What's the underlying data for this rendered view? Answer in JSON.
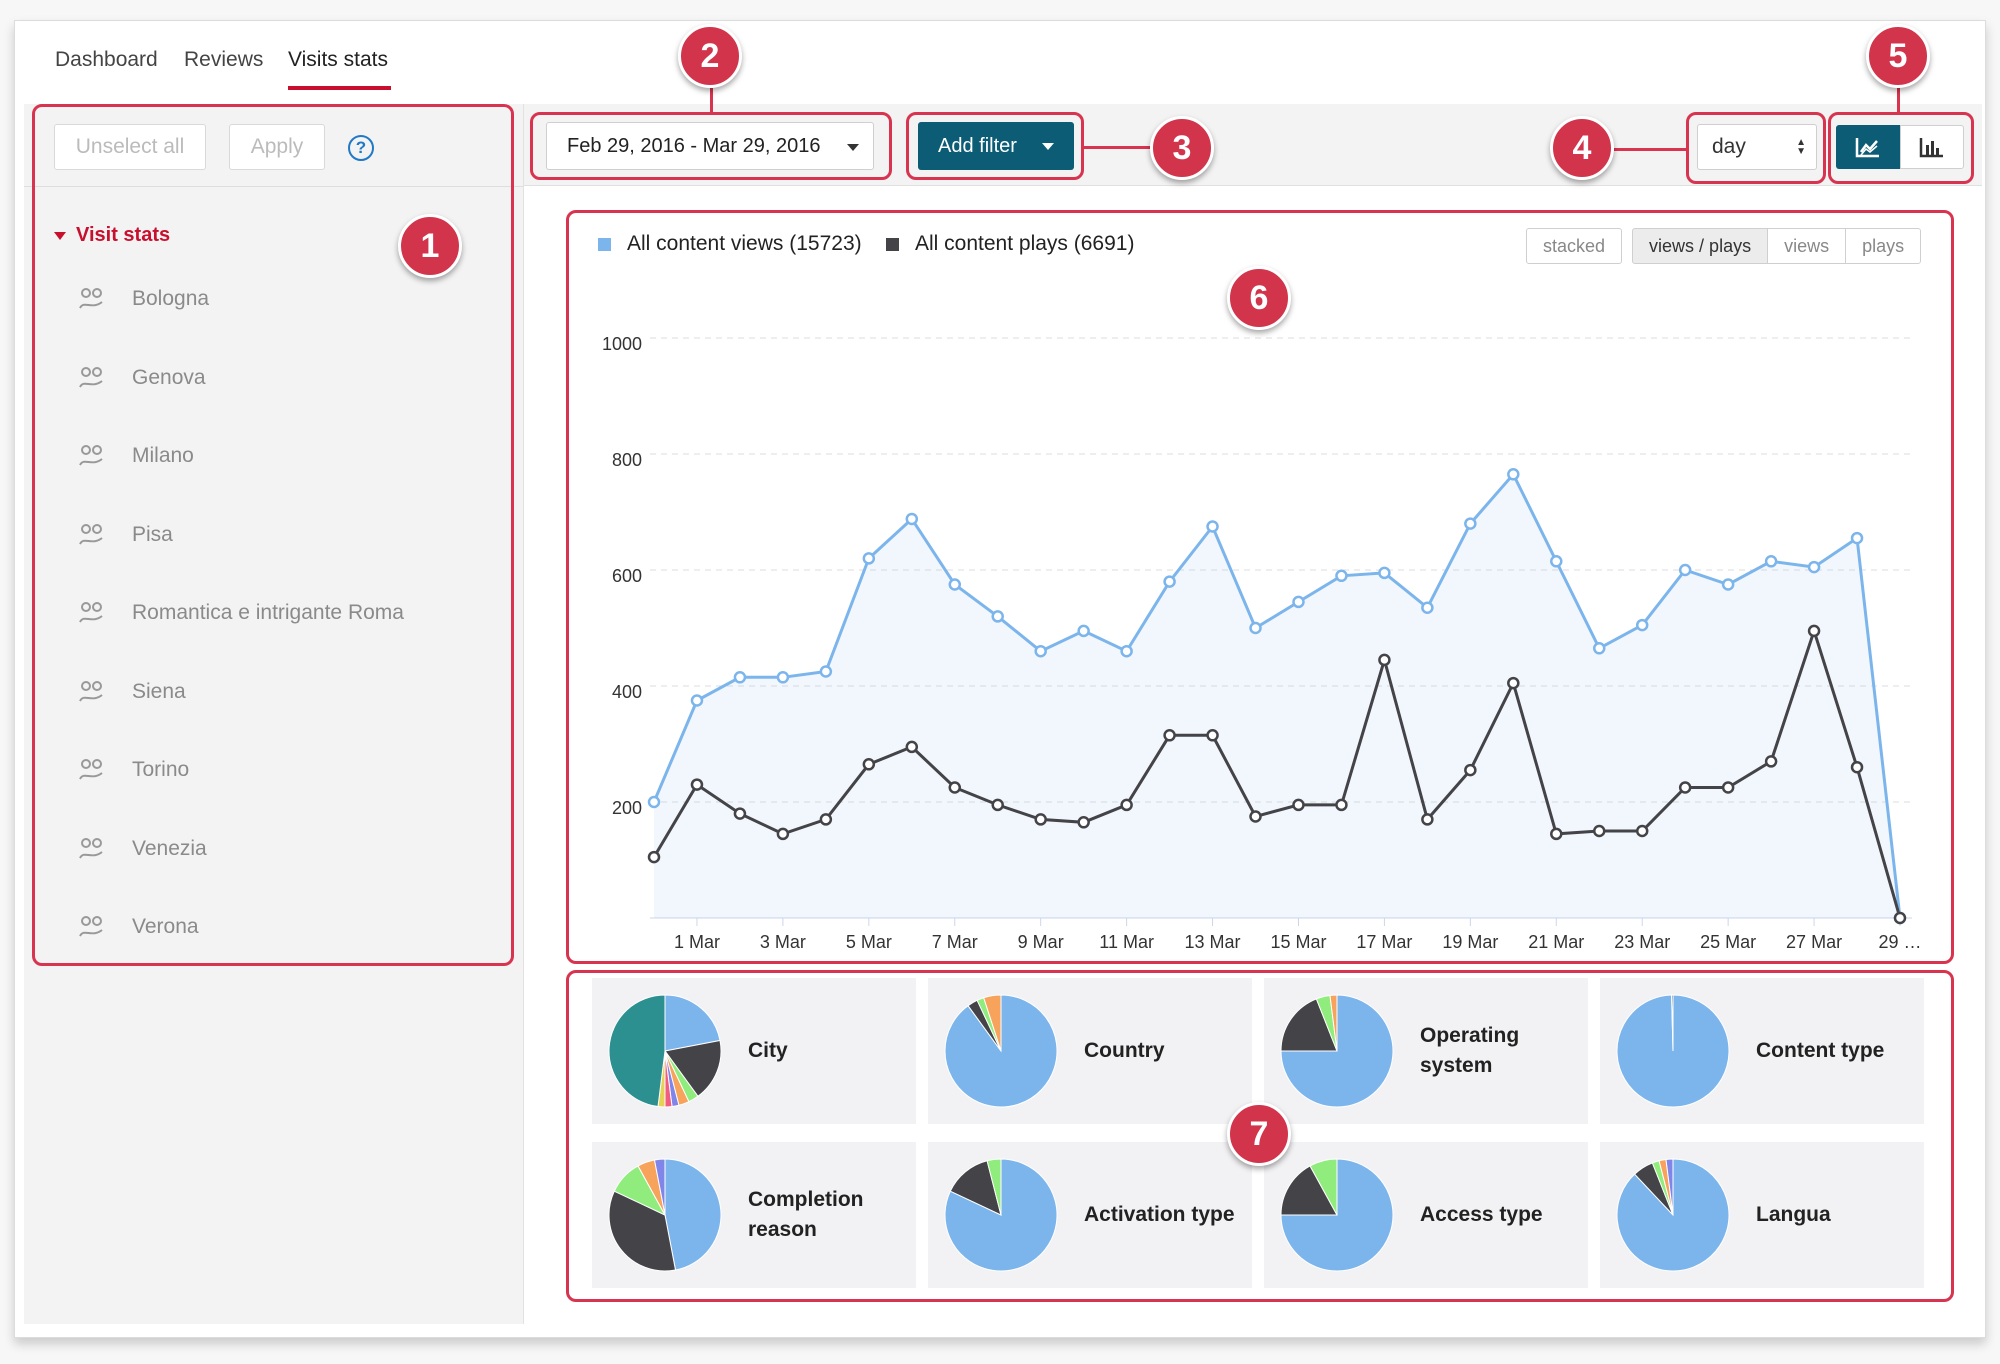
{
  "nav": {
    "tabs": [
      {
        "label": "Dashboard"
      },
      {
        "label": "Reviews"
      },
      {
        "label": "Visits stats"
      }
    ]
  },
  "sidebar": {
    "unselect_label": "Unselect all",
    "apply_label": "Apply",
    "help_icon": "?",
    "section_title": "Visit stats",
    "items": [
      {
        "label": "Bologna"
      },
      {
        "label": "Genova"
      },
      {
        "label": "Milano"
      },
      {
        "label": "Pisa"
      },
      {
        "label": "Romantica e intrigante Roma"
      },
      {
        "label": "Siena"
      },
      {
        "label": "Torino"
      },
      {
        "label": "Venezia"
      },
      {
        "label": "Verona"
      }
    ]
  },
  "toolbar": {
    "date_range": "Feb 29, 2016 - Mar 29, 2016",
    "add_filter_label": "Add filter",
    "period_select": "day",
    "view_icons": [
      "line-chart-icon",
      "bar-chart-icon"
    ]
  },
  "chart_controls": {
    "toggles": [
      "stacked",
      "views / plays",
      "views",
      "plays"
    ],
    "active": "views / plays"
  },
  "chart_data": {
    "type": "area",
    "series": [
      {
        "name": "All content views (15723)",
        "color": "#7cb5ec",
        "values": [
          200,
          375,
          415,
          415,
          425,
          620,
          688,
          575,
          520,
          460,
          495,
          460,
          580,
          675,
          500,
          545,
          590,
          595,
          535,
          680,
          765,
          615,
          465,
          505,
          600,
          575,
          615,
          605,
          655,
          0
        ]
      },
      {
        "name": "All content plays (6691)",
        "color": "#434348",
        "values": [
          105,
          230,
          180,
          145,
          170,
          265,
          295,
          225,
          195,
          170,
          165,
          195,
          315,
          315,
          175,
          195,
          195,
          445,
          170,
          255,
          405,
          145,
          150,
          150,
          225,
          225,
          270,
          495,
          260,
          0
        ]
      }
    ],
    "x_ticks": [
      "1 Mar",
      "3 Mar",
      "5 Mar",
      "7 Mar",
      "9 Mar",
      "11 Mar",
      "13 Mar",
      "15 Mar",
      "17 Mar",
      "19 Mar",
      "21 Mar",
      "23 Mar",
      "25 Mar",
      "27 Mar",
      "29 …"
    ],
    "y_ticks": [
      200,
      400,
      600,
      800,
      1000
    ],
    "ylim": [
      0,
      1000
    ],
    "grid": true
  },
  "pies": [
    {
      "label": "City",
      "colors": [
        "#7cb5ec",
        "#434348",
        "#90ed7d",
        "#f7a35c",
        "#8085e9",
        "#f15c80",
        "#e4d354",
        "#2b908f"
      ],
      "values": [
        22,
        18,
        3,
        3,
        2,
        2,
        2,
        48
      ]
    },
    {
      "label": "Country",
      "colors": [
        "#7cb5ec",
        "#434348",
        "#90ed7d",
        "#f7a35c"
      ],
      "values": [
        90,
        3,
        2,
        5
      ]
    },
    {
      "label": "Operating system",
      "colors": [
        "#7cb5ec",
        "#434348",
        "#90ed7d",
        "#f7a35c"
      ],
      "values": [
        75,
        19,
        4,
        2
      ]
    },
    {
      "label": "Content type",
      "colors": [
        "#7cb5ec",
        "#434348"
      ],
      "values": [
        99.6,
        0.4
      ]
    },
    {
      "label": "Completion reason",
      "colors": [
        "#7cb5ec",
        "#434348",
        "#90ed7d",
        "#f7a35c",
        "#8085e9"
      ],
      "values": [
        47,
        35,
        10,
        5,
        3
      ]
    },
    {
      "label": "Activation type",
      "colors": [
        "#7cb5ec",
        "#434348",
        "#90ed7d"
      ],
      "values": [
        82,
        14,
        4
      ]
    },
    {
      "label": "Access type",
      "colors": [
        "#7cb5ec",
        "#434348",
        "#90ed7d"
      ],
      "values": [
        75,
        17,
        8
      ]
    },
    {
      "label": "Langua",
      "colors": [
        "#7cb5ec",
        "#434348",
        "#90ed7d",
        "#f7a35c",
        "#8085e9"
      ],
      "values": [
        88,
        6,
        2,
        2,
        2
      ]
    }
  ],
  "annotations": [
    "1",
    "2",
    "3",
    "4",
    "5",
    "6",
    "7"
  ]
}
